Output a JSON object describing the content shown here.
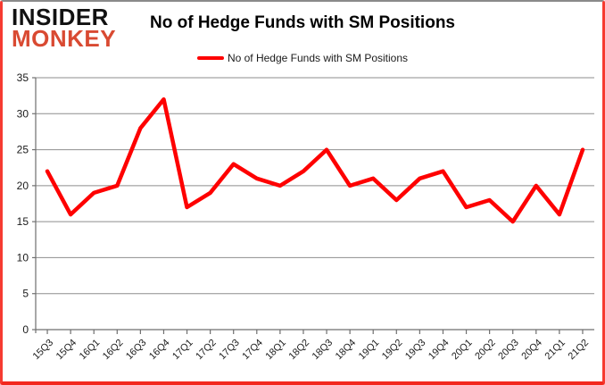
{
  "branding": {
    "name_top": "INSIDER",
    "name_bottom": "MONKEY"
  },
  "header": {
    "title": "No of Hedge Funds with SM Positions"
  },
  "legend": {
    "label": "No of Hedge Funds with SM Positions"
  },
  "colors": {
    "series": "#fe0000",
    "grid": "#8e8e8e",
    "axis": "#6f6f6f",
    "tick_text": "#1a1a1a",
    "logo_red": "#d94a32",
    "border_red": "#f2342c",
    "border_top_gray": "#8a8a8a"
  },
  "chart_data": {
    "type": "line",
    "title": "No of Hedge Funds with SM Positions",
    "xlabel": "",
    "ylabel": "",
    "ylim": [
      0,
      35
    ],
    "ytick_step": 5,
    "grid": true,
    "legend_position": "top-center",
    "categories": [
      "15Q3",
      "15Q4",
      "16Q1",
      "16Q2",
      "16Q3",
      "16Q4",
      "17Q1",
      "17Q2",
      "17Q3",
      "17Q4",
      "18Q1",
      "18Q2",
      "18Q3",
      "18Q4",
      "19Q1",
      "19Q2",
      "19Q3",
      "19Q4",
      "20Q1",
      "20Q2",
      "20Q3",
      "20Q4",
      "21Q1",
      "21Q2"
    ],
    "series": [
      {
        "name": "No of Hedge Funds with SM Positions",
        "color": "#fe0000",
        "values": [
          22,
          16,
          19,
          20,
          28,
          32,
          17,
          19,
          23,
          21,
          20,
          22,
          25,
          20,
          21,
          18,
          21,
          22,
          17,
          18,
          15,
          20,
          16,
          25
        ]
      }
    ]
  }
}
